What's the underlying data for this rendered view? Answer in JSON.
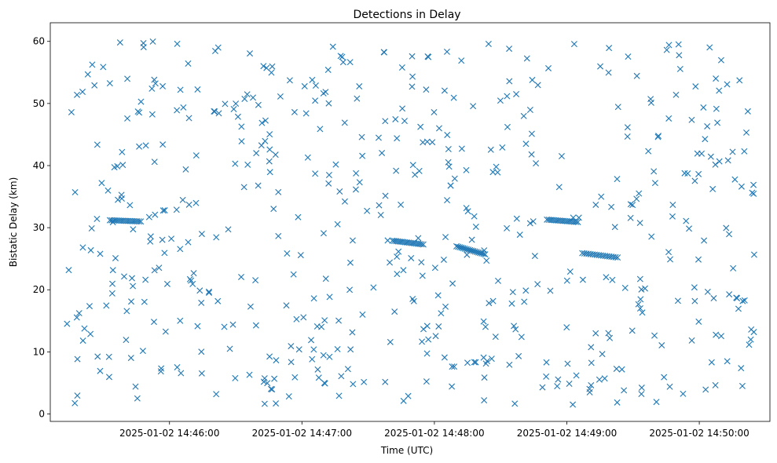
{
  "chart_data": {
    "type": "scatter",
    "title": "Detections in Delay",
    "xlabel": "Time (UTC)",
    "ylabel": "Bistatic Delay (km)",
    "marker": "x",
    "color": "#1f77b4",
    "grid": false,
    "x_unit": "time (UTC)",
    "x_ticks": [
      "2025-01-02 14:46:00",
      "2025-01-02 14:47:00",
      "2025-01-02 14:48:00",
      "2025-01-02 14:49:00",
      "2025-01-02 14:50:00"
    ],
    "y_ticks": [
      "0",
      "10",
      "20",
      "30",
      "40",
      "50",
      "60"
    ],
    "xlim": [
      "2025-01-02 14:45:06",
      "2025-01-02 14:50:32"
    ],
    "ylim": [
      -1.2,
      63
    ],
    "x_start": "2025-01-02 14:45:13",
    "x_end": "2025-01-02 14:50:25",
    "y_range": [
      1.5,
      60
    ],
    "tracks": [
      {
        "x": [
          "2025-01-02 14:45:33",
          "2025-01-02 14:45:47"
        ],
        "y": [
          31.2,
          31.0
        ]
      },
      {
        "x": [
          "2025-01-02 14:47:41",
          "2025-01-02 14:47:55"
        ],
        "y": [
          27.9,
          27.3
        ]
      },
      {
        "x": [
          "2025-01-02 14:48:10",
          "2025-01-02 14:48:23"
        ],
        "y": [
          27.0,
          25.7
        ]
      },
      {
        "x": [
          "2025-01-02 14:48:51",
          "2025-01-02 14:49:05"
        ],
        "y": [
          31.3,
          30.9
        ]
      },
      {
        "x": [
          "2025-01-02 14:49:07",
          "2025-01-02 14:49:23"
        ],
        "y": [
          25.9,
          25.2
        ]
      }
    ],
    "clutter_count": 560
  }
}
